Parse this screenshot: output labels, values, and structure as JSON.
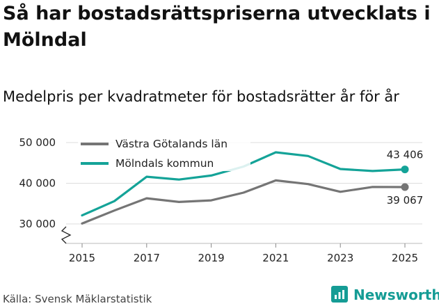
{
  "title": "Så har bostadsrättspriserna utvecklats i Mölndal",
  "subtitle": "Medelpris per kvadratmeter för bostadsrätter år för år",
  "source": "Källa: Svensk Mäklarstatistik",
  "brand": "Newsworthy",
  "colors": {
    "series1": "#757575",
    "series2": "#14a398",
    "brand": "#159c95",
    "grid": "#dddddd",
    "text": "#222222"
  },
  "chart_data": {
    "type": "line",
    "x": [
      2015,
      2016,
      2017,
      2018,
      2019,
      2020,
      2021,
      2022,
      2023,
      2024,
      2025
    ],
    "xticks": [
      2015,
      2017,
      2019,
      2021,
      2023,
      2025
    ],
    "xtick_labels": [
      "2015",
      "2017",
      "2019",
      "2021",
      "2023",
      "2025"
    ],
    "yticks": [
      30000,
      40000,
      50000
    ],
    "ytick_labels": [
      "30 000",
      "40 000",
      "50 000"
    ],
    "ylim": [
      30000,
      50000
    ],
    "series": [
      {
        "name": "Västra Götalands län",
        "color": "#757575",
        "values": [
          30100,
          33300,
          36300,
          35400,
          35800,
          37700,
          40700,
          39800,
          37900,
          39100,
          39067
        ],
        "end_label": "39 067"
      },
      {
        "name": "Mölndals kommun",
        "color": "#14a398",
        "values": [
          32100,
          35600,
          41600,
          40900,
          41900,
          44100,
          47600,
          46700,
          43500,
          43000,
          43406
        ],
        "end_label": "43 406"
      }
    ],
    "legend_position": "top-left",
    "xlabel": "",
    "ylabel": ""
  }
}
